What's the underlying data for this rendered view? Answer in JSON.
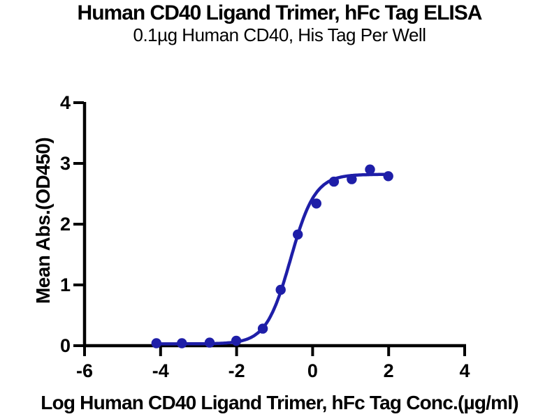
{
  "chart_data": {
    "type": "scatter",
    "title": "Human CD40 Ligand Trimer, hFc Tag ELISA",
    "subtitle": "0.1µg Human CD40, His Tag Per Well",
    "xlabel": "Log Human CD40 Ligand Trimer, hFc Tag Conc.(µg/ml)",
    "ylabel": "Mean Abs.(OD450)",
    "xlim": [
      -6,
      4
    ],
    "ylim": [
      0,
      4
    ],
    "xticks": [
      -6,
      -4,
      -2,
      0,
      2,
      4
    ],
    "yticks": [
      0,
      1,
      2,
      3,
      4
    ],
    "grid": false,
    "legend": "none",
    "series": [
      {
        "name": "Human CD40 Ligand Trimer, hFc Tag",
        "marker": "circle",
        "points": [
          {
            "x": -4.11,
            "y": 0.04
          },
          {
            "x": -3.44,
            "y": 0.04
          },
          {
            "x": -2.71,
            "y": 0.05
          },
          {
            "x": -2.01,
            "y": 0.08
          },
          {
            "x": -1.31,
            "y": 0.28
          },
          {
            "x": -0.84,
            "y": 0.92
          },
          {
            "x": -0.39,
            "y": 1.83
          },
          {
            "x": 0.1,
            "y": 2.34
          },
          {
            "x": 0.56,
            "y": 2.7
          },
          {
            "x": 1.03,
            "y": 2.74
          },
          {
            "x": 1.51,
            "y": 2.9
          },
          {
            "x": 1.99,
            "y": 2.79
          }
        ]
      }
    ],
    "fit_curve": {
      "model": "4PL",
      "bottom": 0.03,
      "top": 2.82,
      "log_ec50": -0.58,
      "hill_slope": 1.35,
      "x_start": -4.11,
      "x_end": 1.99
    },
    "colors": {
      "series": "#1e1ea8",
      "axis": "#000000",
      "text": "#000000",
      "background": "#ffffff"
    }
  }
}
